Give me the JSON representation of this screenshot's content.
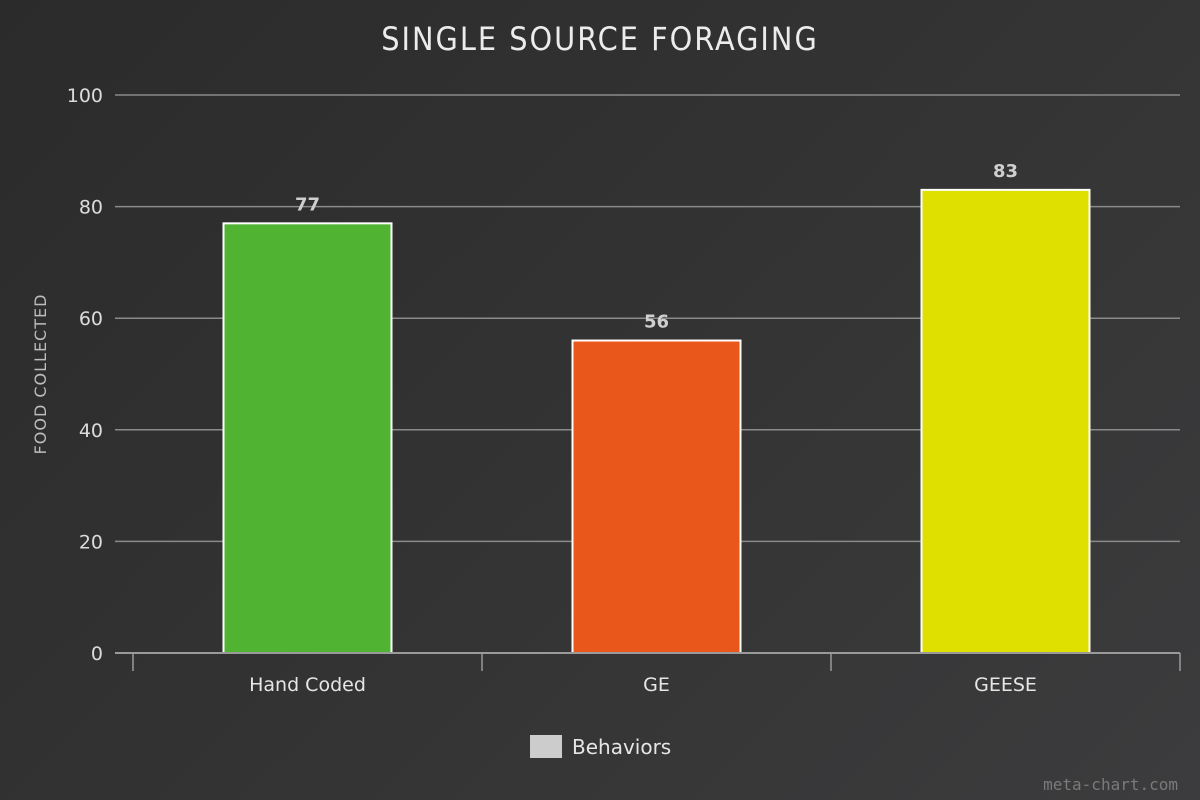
{
  "chart_data": {
    "type": "bar",
    "title": "SINGLE SOURCE FORAGING",
    "xlabel": "",
    "ylabel": "FOOD COLLECTED",
    "categories": [
      "Hand Coded",
      "GE",
      "GEESE"
    ],
    "values": [
      77,
      56,
      83
    ],
    "colors": [
      "#50b432",
      "#ea571b",
      "#dfe000"
    ],
    "ylim": [
      0,
      100
    ],
    "yticks": [
      0,
      20,
      40,
      60,
      80,
      100
    ],
    "grid": true,
    "legend": {
      "position": "bottom-center",
      "entries": [
        {
          "label": "Behaviors",
          "color": "#cccccc"
        }
      ]
    },
    "series": [
      {
        "name": "Behaviors",
        "values": [
          77,
          56,
          83
        ]
      }
    ]
  },
  "watermark": "meta-chart.com"
}
